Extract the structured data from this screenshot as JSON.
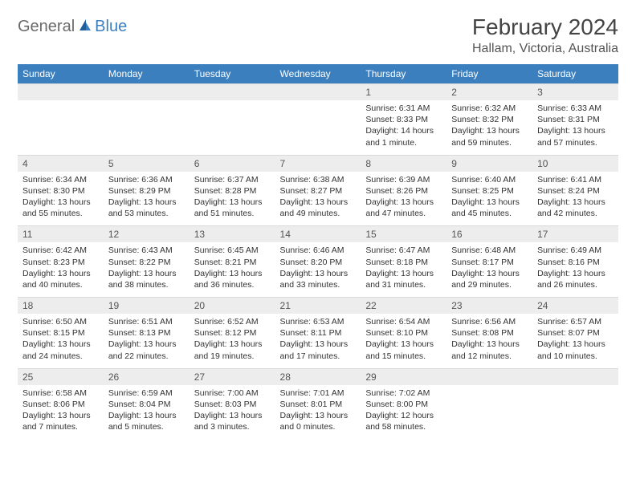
{
  "logo": {
    "general": "General",
    "blue": "Blue"
  },
  "title": "February 2024",
  "location": "Hallam, Victoria, Australia",
  "colors": {
    "header_bg": "#3b7fbf",
    "header_fg": "#ffffff",
    "daynum_bg": "#ededed",
    "border": "#d9d9d9",
    "text": "#333333"
  },
  "days_of_week": [
    "Sunday",
    "Monday",
    "Tuesday",
    "Wednesday",
    "Thursday",
    "Friday",
    "Saturday"
  ],
  "weeks": [
    [
      {
        "empty": true
      },
      {
        "empty": true
      },
      {
        "empty": true
      },
      {
        "empty": true
      },
      {
        "n": "1",
        "sr": "Sunrise: 6:31 AM",
        "ss": "Sunset: 8:33 PM",
        "dl": "Daylight: 14 hours and 1 minute."
      },
      {
        "n": "2",
        "sr": "Sunrise: 6:32 AM",
        "ss": "Sunset: 8:32 PM",
        "dl": "Daylight: 13 hours and 59 minutes."
      },
      {
        "n": "3",
        "sr": "Sunrise: 6:33 AM",
        "ss": "Sunset: 8:31 PM",
        "dl": "Daylight: 13 hours and 57 minutes."
      }
    ],
    [
      {
        "n": "4",
        "sr": "Sunrise: 6:34 AM",
        "ss": "Sunset: 8:30 PM",
        "dl": "Daylight: 13 hours and 55 minutes."
      },
      {
        "n": "5",
        "sr": "Sunrise: 6:36 AM",
        "ss": "Sunset: 8:29 PM",
        "dl": "Daylight: 13 hours and 53 minutes."
      },
      {
        "n": "6",
        "sr": "Sunrise: 6:37 AM",
        "ss": "Sunset: 8:28 PM",
        "dl": "Daylight: 13 hours and 51 minutes."
      },
      {
        "n": "7",
        "sr": "Sunrise: 6:38 AM",
        "ss": "Sunset: 8:27 PM",
        "dl": "Daylight: 13 hours and 49 minutes."
      },
      {
        "n": "8",
        "sr": "Sunrise: 6:39 AM",
        "ss": "Sunset: 8:26 PM",
        "dl": "Daylight: 13 hours and 47 minutes."
      },
      {
        "n": "9",
        "sr": "Sunrise: 6:40 AM",
        "ss": "Sunset: 8:25 PM",
        "dl": "Daylight: 13 hours and 45 minutes."
      },
      {
        "n": "10",
        "sr": "Sunrise: 6:41 AM",
        "ss": "Sunset: 8:24 PM",
        "dl": "Daylight: 13 hours and 42 minutes."
      }
    ],
    [
      {
        "n": "11",
        "sr": "Sunrise: 6:42 AM",
        "ss": "Sunset: 8:23 PM",
        "dl": "Daylight: 13 hours and 40 minutes."
      },
      {
        "n": "12",
        "sr": "Sunrise: 6:43 AM",
        "ss": "Sunset: 8:22 PM",
        "dl": "Daylight: 13 hours and 38 minutes."
      },
      {
        "n": "13",
        "sr": "Sunrise: 6:45 AM",
        "ss": "Sunset: 8:21 PM",
        "dl": "Daylight: 13 hours and 36 minutes."
      },
      {
        "n": "14",
        "sr": "Sunrise: 6:46 AM",
        "ss": "Sunset: 8:20 PM",
        "dl": "Daylight: 13 hours and 33 minutes."
      },
      {
        "n": "15",
        "sr": "Sunrise: 6:47 AM",
        "ss": "Sunset: 8:18 PM",
        "dl": "Daylight: 13 hours and 31 minutes."
      },
      {
        "n": "16",
        "sr": "Sunrise: 6:48 AM",
        "ss": "Sunset: 8:17 PM",
        "dl": "Daylight: 13 hours and 29 minutes."
      },
      {
        "n": "17",
        "sr": "Sunrise: 6:49 AM",
        "ss": "Sunset: 8:16 PM",
        "dl": "Daylight: 13 hours and 26 minutes."
      }
    ],
    [
      {
        "n": "18",
        "sr": "Sunrise: 6:50 AM",
        "ss": "Sunset: 8:15 PM",
        "dl": "Daylight: 13 hours and 24 minutes."
      },
      {
        "n": "19",
        "sr": "Sunrise: 6:51 AM",
        "ss": "Sunset: 8:13 PM",
        "dl": "Daylight: 13 hours and 22 minutes."
      },
      {
        "n": "20",
        "sr": "Sunrise: 6:52 AM",
        "ss": "Sunset: 8:12 PM",
        "dl": "Daylight: 13 hours and 19 minutes."
      },
      {
        "n": "21",
        "sr": "Sunrise: 6:53 AM",
        "ss": "Sunset: 8:11 PM",
        "dl": "Daylight: 13 hours and 17 minutes."
      },
      {
        "n": "22",
        "sr": "Sunrise: 6:54 AM",
        "ss": "Sunset: 8:10 PM",
        "dl": "Daylight: 13 hours and 15 minutes."
      },
      {
        "n": "23",
        "sr": "Sunrise: 6:56 AM",
        "ss": "Sunset: 8:08 PM",
        "dl": "Daylight: 13 hours and 12 minutes."
      },
      {
        "n": "24",
        "sr": "Sunrise: 6:57 AM",
        "ss": "Sunset: 8:07 PM",
        "dl": "Daylight: 13 hours and 10 minutes."
      }
    ],
    [
      {
        "n": "25",
        "sr": "Sunrise: 6:58 AM",
        "ss": "Sunset: 8:06 PM",
        "dl": "Daylight: 13 hours and 7 minutes."
      },
      {
        "n": "26",
        "sr": "Sunrise: 6:59 AM",
        "ss": "Sunset: 8:04 PM",
        "dl": "Daylight: 13 hours and 5 minutes."
      },
      {
        "n": "27",
        "sr": "Sunrise: 7:00 AM",
        "ss": "Sunset: 8:03 PM",
        "dl": "Daylight: 13 hours and 3 minutes."
      },
      {
        "n": "28",
        "sr": "Sunrise: 7:01 AM",
        "ss": "Sunset: 8:01 PM",
        "dl": "Daylight: 13 hours and 0 minutes."
      },
      {
        "n": "29",
        "sr": "Sunrise: 7:02 AM",
        "ss": "Sunset: 8:00 PM",
        "dl": "Daylight: 12 hours and 58 minutes."
      },
      {
        "empty": true
      },
      {
        "empty": true
      }
    ]
  ]
}
